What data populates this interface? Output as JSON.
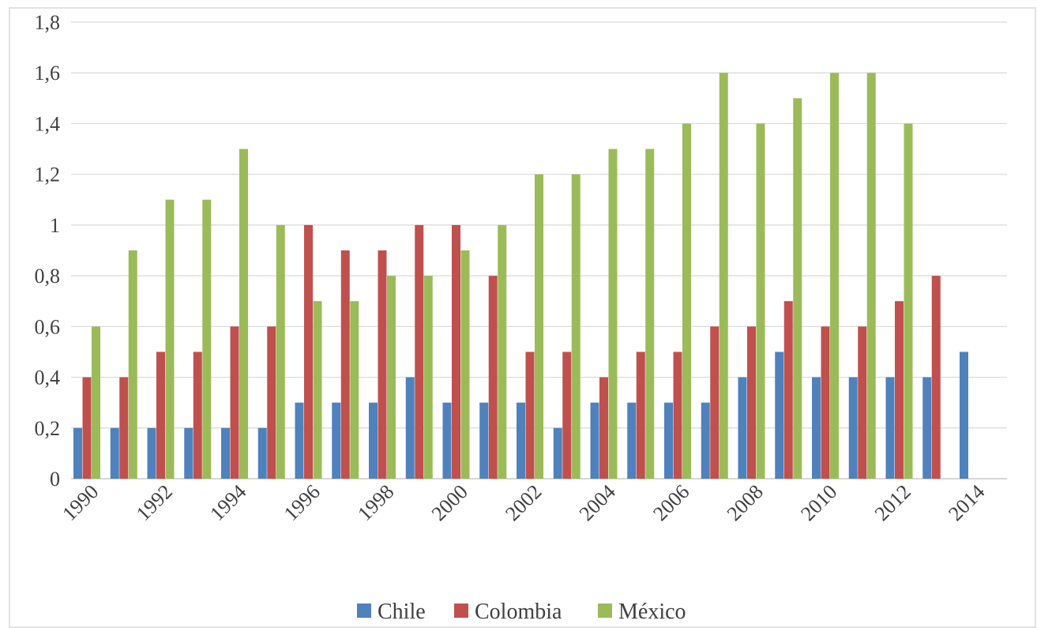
{
  "chart_data": {
    "type": "bar",
    "title": "",
    "xlabel": "",
    "ylabel": "",
    "ylim": [
      0,
      1.8
    ],
    "yticks": [
      "0",
      "0,2",
      "0,4",
      "0,6",
      "0,8",
      "1",
      "1,2",
      "1,4",
      "1,6",
      "1,8"
    ],
    "ytick_values": [
      0,
      0.2,
      0.4,
      0.6,
      0.8,
      1.0,
      1.2,
      1.4,
      1.6,
      1.8
    ],
    "grid": true,
    "legend_position": "bottom",
    "categories": [
      "1990",
      "1991",
      "1992",
      "1993",
      "1994",
      "1995",
      "1996",
      "1997",
      "1998",
      "1999",
      "2000",
      "2001",
      "2002",
      "2003",
      "2004",
      "2005",
      "2006",
      "2007",
      "2008",
      "2009",
      "2010",
      "2011",
      "2012",
      "2013",
      "2014"
    ],
    "xtick_labels_shown": [
      "1990",
      "1992",
      "1994",
      "1996",
      "1998",
      "2000",
      "2002",
      "2004",
      "2006",
      "2008",
      "2010",
      "2012",
      "2014"
    ],
    "series": [
      {
        "name": "Chile",
        "color": "#4f81bd",
        "values": [
          0.2,
          0.2,
          0.2,
          0.2,
          0.2,
          0.2,
          0.3,
          0.3,
          0.3,
          0.4,
          0.3,
          0.3,
          0.3,
          0.2,
          0.3,
          0.3,
          0.3,
          0.3,
          0.4,
          0.5,
          0.4,
          0.4,
          0.4,
          0.4,
          0.5
        ]
      },
      {
        "name": "Colombia",
        "color": "#c0504d",
        "values": [
          0.4,
          0.4,
          0.5,
          0.5,
          0.6,
          0.6,
          1.0,
          0.9,
          0.9,
          1.0,
          1.0,
          0.8,
          0.5,
          0.5,
          0.4,
          0.5,
          0.5,
          0.6,
          0.6,
          0.7,
          0.6,
          0.6,
          0.7,
          0.8,
          null
        ]
      },
      {
        "name": "México",
        "color": "#9bbb59",
        "values": [
          0.6,
          0.9,
          1.1,
          1.1,
          1.3,
          1.0,
          0.7,
          0.7,
          0.8,
          0.8,
          0.9,
          1.0,
          1.2,
          1.2,
          1.3,
          1.3,
          1.4,
          1.6,
          1.4,
          1.5,
          1.6,
          1.6,
          1.4,
          null,
          null
        ]
      }
    ]
  }
}
